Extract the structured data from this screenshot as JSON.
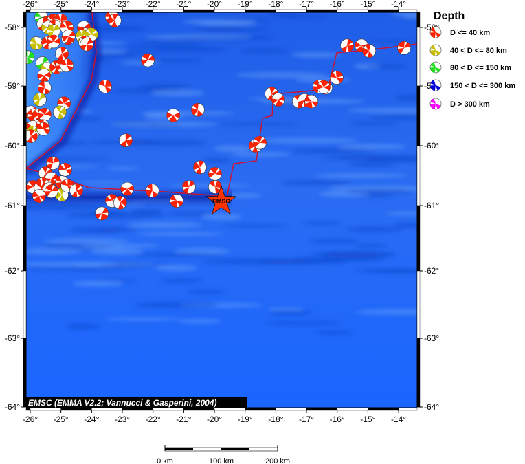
{
  "map": {
    "lon_ticks": [
      "-26°",
      "-25°",
      "-24°",
      "-23°",
      "-22°",
      "-21°",
      "-20°",
      "-19°",
      "-18°",
      "-17°",
      "-16°",
      "-15°",
      "-14°"
    ],
    "lat_ticks": [
      "-58°",
      "-59°",
      "-60°",
      "-61°",
      "-62°",
      "-63°",
      "-64°"
    ],
    "lon_values": [
      -26,
      -25,
      -24,
      -23,
      -22,
      -21,
      -20,
      -19,
      -18,
      -17,
      -16,
      -15,
      -14
    ],
    "lat_values": [
      -58,
      -59,
      -60,
      -61,
      -62,
      -63,
      -64
    ],
    "attribution": "EMSC (EMMA V2.2; Vannucci & Gasperini, 2004)",
    "epicenter": {
      "lon": -19.78,
      "lat": -60.93,
      "label": "EMSC",
      "color": "#ff3300"
    },
    "plate_boundary_color": "#cc1133",
    "ocean_color": "#1a66ff"
  },
  "legend": {
    "title": "Depth",
    "items": [
      {
        "label": "D <= 40 km",
        "color": "#ff2200"
      },
      {
        "label": "40 < D <= 80 km",
        "color": "#c8c000"
      },
      {
        "label": "80 < D <= 150 km",
        "color": "#22dd22"
      },
      {
        "label": "150 < D <= 300 km",
        "color": "#0000dd"
      },
      {
        "label": "D > 300 km",
        "color": "#ff00ff"
      }
    ]
  },
  "scale_bar": {
    "labels": [
      "0 km",
      "100 km",
      "200 km"
    ]
  },
  "events": [
    [
      -25.64,
      -57.82,
      2
    ],
    [
      -25.46,
      -57.92,
      0
    ],
    [
      -25.24,
      -57.88,
      0
    ],
    [
      -25.01,
      -57.88,
      0
    ],
    [
      -25.57,
      -57.94,
      0
    ],
    [
      -25.42,
      -58.0,
      1
    ],
    [
      -25.19,
      -57.98,
      0
    ],
    [
      -25.24,
      -58.06,
      1
    ],
    [
      -24.81,
      -58.0,
      0
    ],
    [
      -24.77,
      -58.18,
      0
    ],
    [
      -24.75,
      -58.15,
      0
    ],
    [
      -25.8,
      -58.27,
      1
    ],
    [
      -25.42,
      -58.26,
      0
    ],
    [
      -25.24,
      -58.24,
      0
    ],
    [
      -26.08,
      -58.51,
      2
    ],
    [
      -25.6,
      -58.61,
      2
    ],
    [
      -25.46,
      -58.71,
      1
    ],
    [
      -25.15,
      -58.68,
      0
    ],
    [
      -24.97,
      -58.65,
      0
    ],
    [
      -24.81,
      -58.65,
      0
    ],
    [
      -24.97,
      -58.45,
      0
    ],
    [
      -25.55,
      -58.82,
      0
    ],
    [
      -25.53,
      -59.03,
      0
    ],
    [
      -25.69,
      -59.23,
      1
    ],
    [
      -24.9,
      -59.29,
      0
    ],
    [
      -25.04,
      -59.44,
      1
    ],
    [
      -25.98,
      -59.44,
      0
    ],
    [
      -25.87,
      -59.49,
      0
    ],
    [
      -25.71,
      -59.49,
      0
    ],
    [
      -25.53,
      -59.48,
      0
    ],
    [
      -26.04,
      -59.72,
      0
    ],
    [
      -25.75,
      -59.67,
      0
    ],
    [
      -25.91,
      -59.69,
      0
    ],
    [
      -25.6,
      -59.67,
      0
    ],
    [
      -25.91,
      -59.78,
      1
    ],
    [
      -25.57,
      -59.72,
      0
    ],
    [
      -25.98,
      -59.84,
      0
    ],
    [
      -24.25,
      -58.0,
      0
    ],
    [
      -24.21,
      -58.12,
      0
    ],
    [
      -24.3,
      -58.15,
      1
    ],
    [
      -24.01,
      -58.12,
      1
    ],
    [
      -24.21,
      -58.26,
      0
    ],
    [
      -24.16,
      -58.29,
      0
    ],
    [
      -23.34,
      -57.82,
      0
    ],
    [
      -23.25,
      -57.88,
      0
    ],
    [
      -22.17,
      -58.56,
      0
    ],
    [
      -23.56,
      -59.01,
      0
    ],
    [
      -22.89,
      -59.91,
      0
    ],
    [
      -21.34,
      -59.49,
      0
    ],
    [
      -20.54,
      -59.4,
      0
    ],
    [
      -25.26,
      -60.29,
      0
    ],
    [
      -24.86,
      -60.4,
      0
    ],
    [
      -25.51,
      -60.46,
      0
    ],
    [
      -25.31,
      -60.55,
      0
    ],
    [
      -24.97,
      -60.61,
      0
    ],
    [
      -25.6,
      -60.64,
      0
    ],
    [
      -25.91,
      -60.69,
      0
    ],
    [
      -25.66,
      -60.7,
      0
    ],
    [
      -25.37,
      -60.72,
      0
    ],
    [
      -25.71,
      -60.84,
      0
    ],
    [
      -24.97,
      -60.82,
      1
    ],
    [
      -25.31,
      -60.76,
      0
    ],
    [
      -24.79,
      -60.67,
      0
    ],
    [
      -24.5,
      -60.75,
      0
    ],
    [
      -22.84,
      -60.72,
      0
    ],
    [
      -22.02,
      -60.75,
      0
    ],
    [
      -20.83,
      -60.69,
      0
    ],
    [
      -23.34,
      -60.92,
      0
    ],
    [
      -23.07,
      -60.95,
      0
    ],
    [
      -23.67,
      -61.12,
      0
    ],
    [
      -21.23,
      -60.92,
      0
    ],
    [
      -20.47,
      -60.36,
      0
    ],
    [
      -19.98,
      -60.47,
      0
    ],
    [
      -19.98,
      -60.69,
      0
    ],
    [
      -15.68,
      -58.31,
      0
    ],
    [
      -15.21,
      -58.31,
      0
    ],
    [
      -14.96,
      -58.4,
      0
    ],
    [
      -13.82,
      -58.35,
      0
    ],
    [
      -16.02,
      -58.86,
      0
    ],
    [
      -18.14,
      -59.13,
      0
    ],
    [
      -17.92,
      -59.23,
      0
    ],
    [
      -16.58,
      -59.01,
      0
    ],
    [
      -16.37,
      -59.03,
      0
    ],
    [
      -16.44,
      -59.02,
      0
    ],
    [
      -17.25,
      -59.26,
      0
    ],
    [
      -17.07,
      -59.24,
      0
    ],
    [
      -16.84,
      -59.26,
      0
    ],
    [
      -18.66,
      -60.0,
      0
    ],
    [
      -18.52,
      -59.95,
      0
    ]
  ]
}
